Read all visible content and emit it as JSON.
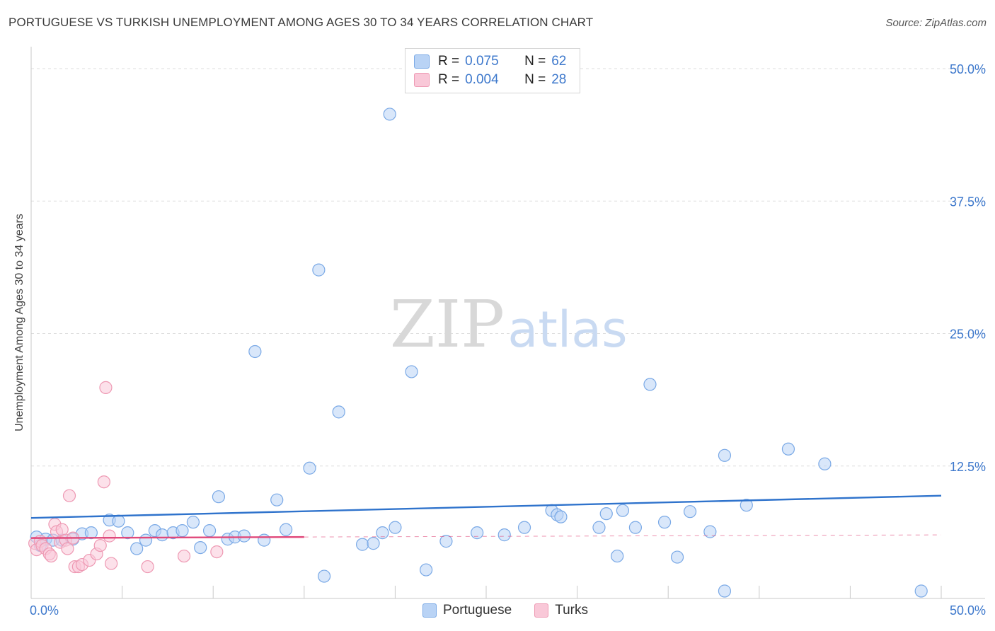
{
  "title": "PORTUGUESE VS TURKISH UNEMPLOYMENT AMONG AGES 30 TO 34 YEARS CORRELATION CHART",
  "source": "Source: ZipAtlas.com",
  "watermark": {
    "zip": "ZIP",
    "atlas": "atlas"
  },
  "legend": {
    "rows": [
      {
        "r_label": "R =",
        "r_value": "0.075",
        "n_label": "N =",
        "n_value": "62"
      },
      {
        "r_label": "R =",
        "r_value": "0.004",
        "n_label": "N =",
        "n_value": "28"
      }
    ]
  },
  "bottom_legend": {
    "items": [
      "Portuguese",
      "Turks"
    ]
  },
  "colors": {
    "portuguese_fill": "#b9d3f5",
    "portuguese_stroke": "#7aa9e6",
    "portuguese_line": "#2f73cc",
    "turks_fill": "#f9c8d8",
    "turks_stroke": "#ee99b3",
    "turks_line": "#e0487a",
    "axis_text": "#3d78cc",
    "grid": "#dddddd"
  },
  "chart_data": {
    "type": "scatter",
    "title": "PORTUGUESE VS TURKISH UNEMPLOYMENT AMONG AGES 30 TO 34 YEARS CORRELATION CHART",
    "xlabel": "",
    "ylabel": "Unemployment Among Ages 30 to 34 years",
    "xlim": [
      0,
      50
    ],
    "ylim": [
      0,
      52
    ],
    "x_tick_labels": [
      "0.0%",
      "50.0%"
    ],
    "y_ticks": [
      12.5,
      25.0,
      37.5,
      50.0
    ],
    "y_tick_labels": [
      "12.5%",
      "25.0%",
      "37.5%",
      "50.0%"
    ],
    "series": [
      {
        "name": "Portuguese",
        "R": 0.075,
        "N": 62,
        "trend": {
          "x": [
            0,
            50
          ],
          "y": [
            7.6,
            9.7
          ]
        },
        "points": [
          [
            0.3,
            5.8
          ],
          [
            0.5,
            5.0
          ],
          [
            0.8,
            5.6
          ],
          [
            1.2,
            5.5
          ],
          [
            1.7,
            5.5
          ],
          [
            2.3,
            5.6
          ],
          [
            2.8,
            6.1
          ],
          [
            3.3,
            6.2
          ],
          [
            4.3,
            7.4
          ],
          [
            4.8,
            7.3
          ],
          [
            5.3,
            6.2
          ],
          [
            5.8,
            4.7
          ],
          [
            6.3,
            5.5
          ],
          [
            6.8,
            6.4
          ],
          [
            7.2,
            6.0
          ],
          [
            7.8,
            6.2
          ],
          [
            8.3,
            6.4
          ],
          [
            8.9,
            7.2
          ],
          [
            9.3,
            4.8
          ],
          [
            9.8,
            6.4
          ],
          [
            10.3,
            9.6
          ],
          [
            10.8,
            5.6
          ],
          [
            11.2,
            5.8
          ],
          [
            11.7,
            5.9
          ],
          [
            12.3,
            23.3
          ],
          [
            12.8,
            5.5
          ],
          [
            13.5,
            9.3
          ],
          [
            14.0,
            6.5
          ],
          [
            15.3,
            12.3
          ],
          [
            15.8,
            31.0
          ],
          [
            16.1,
            2.1
          ],
          [
            16.9,
            17.6
          ],
          [
            18.2,
            5.1
          ],
          [
            18.8,
            5.2
          ],
          [
            19.3,
            6.2
          ],
          [
            19.7,
            45.7
          ],
          [
            20.0,
            6.7
          ],
          [
            20.9,
            21.4
          ],
          [
            21.7,
            2.7
          ],
          [
            22.8,
            5.4
          ],
          [
            24.5,
            6.2
          ],
          [
            26.0,
            6.0
          ],
          [
            27.1,
            6.7
          ],
          [
            28.6,
            8.3
          ],
          [
            28.9,
            7.9
          ],
          [
            29.1,
            7.7
          ],
          [
            31.2,
            6.7
          ],
          [
            31.6,
            8.0
          ],
          [
            32.2,
            4.0
          ],
          [
            32.5,
            8.3
          ],
          [
            33.2,
            6.7
          ],
          [
            34.0,
            20.2
          ],
          [
            34.8,
            7.2
          ],
          [
            35.5,
            3.9
          ],
          [
            36.2,
            8.2
          ],
          [
            37.3,
            6.3
          ],
          [
            38.1,
            13.5
          ],
          [
            38.1,
            0.7
          ],
          [
            39.3,
            8.8
          ],
          [
            41.6,
            14.1
          ],
          [
            43.6,
            12.7
          ],
          [
            48.9,
            0.7
          ]
        ]
      },
      {
        "name": "Turks",
        "R": 0.004,
        "N": 28,
        "trend": {
          "x": [
            0,
            15
          ],
          "y": [
            5.7,
            5.8
          ]
        },
        "trend_dashed": {
          "x": [
            15,
            50
          ],
          "y": [
            5.8,
            6.0
          ]
        },
        "points": [
          [
            0.2,
            5.2
          ],
          [
            0.3,
            4.6
          ],
          [
            0.5,
            5.4
          ],
          [
            0.6,
            5.0
          ],
          [
            0.8,
            4.7
          ],
          [
            1.0,
            4.2
          ],
          [
            1.1,
            4.0
          ],
          [
            1.3,
            7.0
          ],
          [
            1.4,
            6.3
          ],
          [
            1.6,
            5.3
          ],
          [
            1.7,
            6.5
          ],
          [
            1.9,
            5.5
          ],
          [
            2.0,
            4.7
          ],
          [
            2.1,
            9.7
          ],
          [
            2.3,
            5.7
          ],
          [
            2.4,
            3.0
          ],
          [
            2.6,
            3.0
          ],
          [
            2.8,
            3.2
          ],
          [
            3.2,
            3.6
          ],
          [
            3.6,
            4.2
          ],
          [
            3.8,
            5.0
          ],
          [
            4.0,
            11.0
          ],
          [
            4.1,
            19.9
          ],
          [
            4.3,
            5.9
          ],
          [
            4.4,
            3.3
          ],
          [
            6.4,
            3.0
          ],
          [
            8.4,
            4.0
          ],
          [
            10.2,
            4.4
          ]
        ]
      }
    ]
  }
}
